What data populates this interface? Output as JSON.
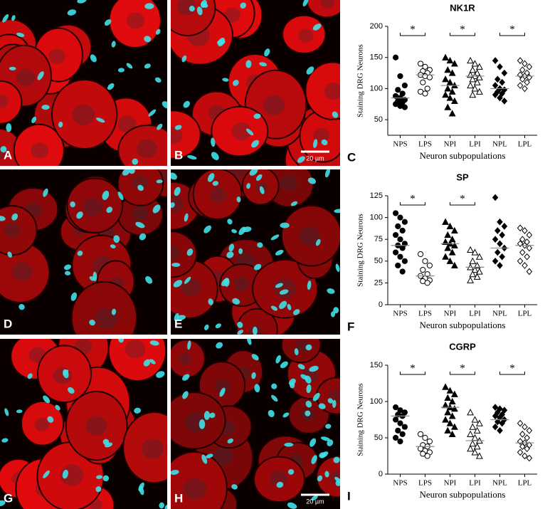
{
  "panels": [
    {
      "label": "A"
    },
    {
      "label": "B",
      "scale": "20 µm"
    },
    {
      "label": "D"
    },
    {
      "label": "E"
    },
    {
      "label": "G"
    },
    {
      "label": "H",
      "scale": "20 µm"
    }
  ],
  "chart_data": [
    {
      "type": "dotplot",
      "title": "NK1R",
      "panel_label": "C",
      "ylabel": "Staining DRG Neurons",
      "xlabel": "Neuron subpopulations",
      "categories": [
        "NPS",
        "LPS",
        "NPI",
        "LPI",
        "NPL",
        "LPL"
      ],
      "markers": [
        "circle",
        "circle-open",
        "triangle",
        "triangle-open",
        "diamond",
        "diamond-open"
      ],
      "color": "#000000",
      "ylim": [
        25,
        200
      ],
      "yticks": [
        50,
        100,
        150,
        200
      ],
      "points": [
        [
          150,
          120,
          105,
          98,
          92,
          88,
          85,
          82,
          80,
          78,
          75,
          72,
          70
        ],
        [
          140,
          135,
          130,
          128,
          125,
          122,
          120,
          118,
          110,
          100,
          95,
          92
        ],
        [
          150,
          145,
          140,
          130,
          125,
          115,
          110,
          105,
          100,
          95,
          90,
          85,
          80,
          70,
          60
        ],
        [
          145,
          140,
          135,
          130,
          125,
          122,
          120,
          118,
          115,
          110,
          105,
          100,
          95,
          90
        ],
        [
          145,
          135,
          125,
          115,
          110,
          105,
          100,
          98,
          95,
          92,
          90,
          85,
          80
        ],
        [
          145,
          140,
          135,
          130,
          125,
          122,
          120,
          118,
          115,
          110,
          105,
          100
        ]
      ],
      "means": [
        85,
        122,
        105,
        120,
        100,
        120
      ],
      "significance": [
        {
          "pair": [
            0,
            1
          ],
          "label": "*"
        },
        {
          "pair": [
            2,
            3
          ],
          "label": "*"
        },
        {
          "pair": [
            4,
            5
          ],
          "label": "*"
        }
      ]
    },
    {
      "type": "dotplot",
      "title": "SP",
      "panel_label": "F",
      "ylabel": "Staining DRG Neurons",
      "xlabel": "Neuron subpopulations",
      "categories": [
        "NPS",
        "LPS",
        "NPI",
        "LPI",
        "NPL",
        "LPL"
      ],
      "markers": [
        "circle",
        "circle-open",
        "triangle",
        "triangle-open",
        "diamond",
        "diamond-open"
      ],
      "color": "#000000",
      "ylim": [
        0,
        125
      ],
      "yticks": [
        0,
        25,
        50,
        75,
        100,
        125
      ],
      "points": [
        [
          105,
          100,
          95,
          90,
          85,
          80,
          75,
          70,
          68,
          65,
          60,
          55,
          50,
          45,
          38
        ],
        [
          58,
          50,
          45,
          40,
          35,
          33,
          30,
          28,
          27,
          25
        ],
        [
          95,
          90,
          85,
          80,
          75,
          72,
          70,
          68,
          65,
          60,
          55,
          50,
          45
        ],
        [
          63,
          60,
          55,
          50,
          45,
          43,
          40,
          38,
          35,
          32,
          28
        ],
        [
          123,
          95,
          90,
          85,
          80,
          75,
          70,
          65,
          60,
          55,
          50,
          45
        ],
        [
          88,
          85,
          80,
          75,
          72,
          70,
          68,
          65,
          60,
          55,
          50,
          45,
          38
        ]
      ],
      "means": [
        68,
        33,
        70,
        43,
        65,
        68
      ],
      "significance": [
        {
          "pair": [
            0,
            1
          ],
          "label": "*"
        },
        {
          "pair": [
            2,
            3
          ],
          "label": "*"
        }
      ]
    },
    {
      "type": "dotplot",
      "title": "CGRP",
      "panel_label": "I",
      "ylabel": "Staining DRG Neurons",
      "xlabel": "Neuron subpopulations",
      "categories": [
        "NPS",
        "LPS",
        "NPI",
        "LPI",
        "NPL",
        "LPL"
      ],
      "markers": [
        "circle",
        "circle-open",
        "triangle",
        "triangle-open",
        "diamond",
        "diamond-open"
      ],
      "color": "#000000",
      "ylim": [
        0,
        150
      ],
      "yticks": [
        0,
        50,
        100,
        150
      ],
      "points": [
        [
          92,
          88,
          85,
          82,
          80,
          75,
          70,
          65,
          60,
          55,
          50,
          45
        ],
        [
          55,
          50,
          45,
          40,
          38,
          35,
          32,
          30,
          28,
          25
        ],
        [
          120,
          115,
          110,
          105,
          100,
          95,
          92,
          90,
          85,
          80,
          75,
          70,
          65,
          60,
          55
        ],
        [
          85,
          75,
          70,
          65,
          60,
          55,
          50,
          46,
          42,
          38,
          35,
          30,
          25
        ],
        [
          92,
          90,
          88,
          85,
          82,
          80,
          78,
          75,
          72,
          70,
          65,
          60
        ],
        [
          70,
          65,
          60,
          55,
          50,
          45,
          43,
          40,
          38,
          35,
          30,
          25,
          22
        ]
      ],
      "means": [
        80,
        38,
        92,
        46,
        75,
        43
      ],
      "significance": [
        {
          "pair": [
            0,
            1
          ],
          "label": "*"
        },
        {
          "pair": [
            2,
            3
          ],
          "label": "*"
        },
        {
          "pair": [
            4,
            5
          ],
          "label": "*"
        }
      ]
    }
  ]
}
